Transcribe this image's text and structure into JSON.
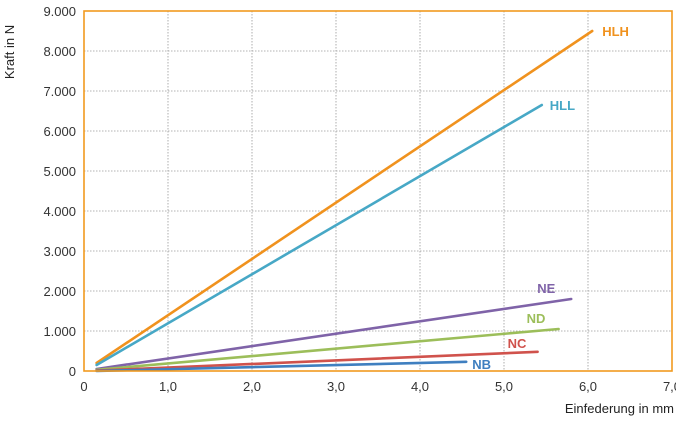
{
  "chart_data": {
    "type": "line",
    "xlabel": "Einfederung in mm",
    "ylabel": "Kraft in N",
    "xlim": [
      0,
      7
    ],
    "ylim": [
      0,
      9000
    ],
    "x_ticks": [
      "0",
      "1,0",
      "2,0",
      "3,0",
      "4,0",
      "5,0",
      "6,0",
      "7,0"
    ],
    "y_ticks": [
      "0",
      "1.000",
      "2.000",
      "3.000",
      "4.000",
      "5.000",
      "6.000",
      "7.000",
      "8.000",
      "9.000"
    ],
    "grid": true,
    "series": [
      {
        "name": "HLH",
        "color": "#f0921e",
        "x": [
          0.15,
          6.05
        ],
        "y": [
          200,
          8500
        ]
      },
      {
        "name": "HLL",
        "color": "#47a8c6",
        "x": [
          0.15,
          5.45
        ],
        "y": [
          150,
          6650
        ]
      },
      {
        "name": "NE",
        "color": "#7f63a8",
        "x": [
          0.15,
          5.8
        ],
        "y": [
          50,
          1800
        ]
      },
      {
        "name": "ND",
        "color": "#9cbe5a",
        "x": [
          0.15,
          5.65
        ],
        "y": [
          30,
          1050
        ]
      },
      {
        "name": "NC",
        "color": "#d0524c",
        "x": [
          0.15,
          5.4
        ],
        "y": [
          10,
          480
        ]
      },
      {
        "name": "NB",
        "color": "#3f7fc0",
        "x": [
          0.15,
          4.55
        ],
        "y": [
          0,
          230
        ]
      }
    ]
  }
}
